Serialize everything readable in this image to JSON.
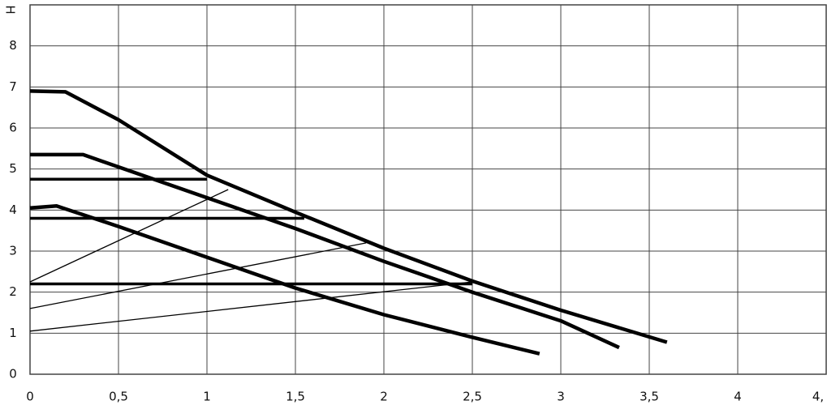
{
  "chart_data": {
    "type": "line",
    "y_label": "H",
    "xlim": [
      0,
      4.5
    ],
    "ylim": [
      0,
      9
    ],
    "xticks": [
      0,
      {
        "value": 0.5,
        "label": "0,5"
      },
      1,
      {
        "value": 1.5,
        "label": "1,5"
      },
      2,
      {
        "value": 2.5,
        "label": "2,5"
      },
      3,
      {
        "value": 3.5,
        "label": "3,5"
      },
      4,
      {
        "value": 4.5,
        "label": "4,"
      }
    ],
    "yticks": [
      0,
      1,
      2,
      3,
      4,
      5,
      6,
      7,
      8
    ],
    "grid": true,
    "series": [
      {
        "color": "#000000",
        "line_width": 4.5,
        "x": [
          0,
          0.2,
          0.5,
          1,
          1.5,
          2,
          2.5,
          3,
          3.6
        ],
        "values": [
          6.9,
          6.88,
          6.2,
          4.85,
          3.95,
          3.07,
          2.27,
          1.56,
          0.78
        ]
      },
      {
        "color": "#000000",
        "line_width": 4.5,
        "x": [
          0,
          0.3,
          0.5,
          1,
          1.5,
          2,
          2.5,
          3,
          3.33
        ],
        "values": [
          5.35,
          5.35,
          5.05,
          4.3,
          3.55,
          2.75,
          2.0,
          1.3,
          0.65
        ]
      },
      {
        "color": "#000000",
        "line_width": 4.5,
        "x": [
          0,
          0.15,
          0.5,
          1,
          1.5,
          2,
          2.5,
          2.88
        ],
        "values": [
          4.05,
          4.1,
          3.6,
          2.85,
          2.1,
          1.45,
          0.9,
          0.5
        ]
      },
      {
        "color": "#000000",
        "line_width": 3.5,
        "x": [
          0,
          1.0
        ],
        "values": [
          4.75,
          4.75
        ]
      },
      {
        "color": "#000000",
        "line_width": 3.5,
        "x": [
          0,
          1.55
        ],
        "values": [
          3.8,
          3.8
        ]
      },
      {
        "color": "#000000",
        "line_width": 3.5,
        "x": [
          0,
          2.5
        ],
        "values": [
          2.2,
          2.2
        ]
      },
      {
        "color": "#000000",
        "line_width": 1.3,
        "x": [
          0,
          1.12
        ],
        "values": [
          2.25,
          4.5
        ]
      },
      {
        "color": "#000000",
        "line_width": 1.3,
        "x": [
          0,
          1.9
        ],
        "values": [
          1.6,
          3.2
        ]
      },
      {
        "color": "#000000",
        "line_width": 1.3,
        "x": [
          0,
          2.5
        ],
        "values": [
          1.05,
          2.25
        ]
      }
    ]
  }
}
